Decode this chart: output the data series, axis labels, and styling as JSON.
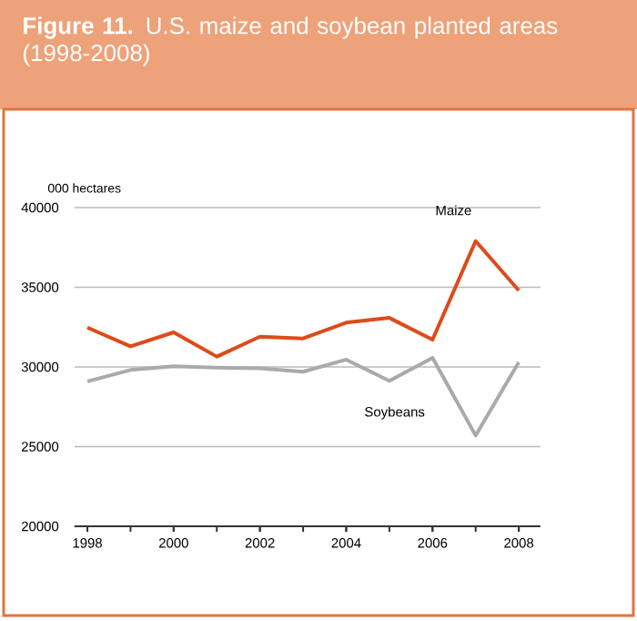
{
  "chart_data": {
    "type": "line",
    "title": "**Figure 11.** U.S. maize and soybean planted areas (1998-2008)",
    "ylabel": "000 hectares",
    "x": [
      1998,
      1999,
      2000,
      2001,
      2002,
      2003,
      2004,
      2005,
      2006,
      2007,
      2008
    ],
    "series": [
      {
        "name": "Maize",
        "color": "#dd4b1a",
        "values": [
          32470,
          31290,
          32170,
          30650,
          31900,
          31790,
          32780,
          33080,
          31710,
          37900,
          34800
        ]
      },
      {
        "name": "Soybeans",
        "color": "#aaaaaa",
        "values": [
          29090,
          29810,
          30040,
          29960,
          29920,
          29700,
          30460,
          29130,
          30570,
          25700,
          30300
        ]
      }
    ],
    "xlim": [
      1997.7,
      2008.5
    ],
    "ylim": [
      20000,
      40000
    ],
    "xticks": [
      1998,
      2000,
      2002,
      2004,
      2006,
      2008
    ],
    "yticks": [
      20000,
      25000,
      30000,
      35000,
      40000
    ],
    "grid": "y",
    "legend": false,
    "marker": "none",
    "line_style": "solid"
  }
}
